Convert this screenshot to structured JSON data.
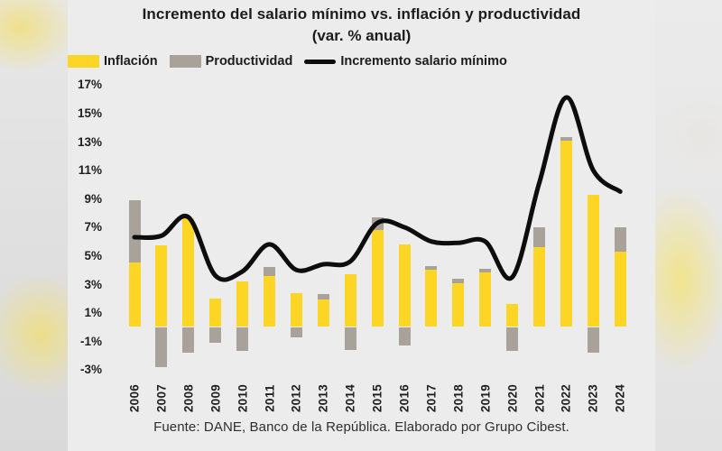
{
  "title": "Incremento del salario mínimo vs. inflación y productividad",
  "subtitle": "(var. % anual)",
  "footer": "Fuente: DANE, Banco de la República. Elaborado por Grupo Cibest.",
  "colors": {
    "inflation": "#FDD524",
    "productivity": "#A8A29B",
    "line": "#0D0D0D",
    "panel_background": "#ECECEC",
    "text": "#1C1C1C"
  },
  "legend": {
    "items": [
      {
        "label": "Inflación",
        "type": "bar",
        "color": "#FDD524"
      },
      {
        "label": "Productividad",
        "type": "bar",
        "color": "#A8A29B"
      },
      {
        "label": "Incremento salario mínimo",
        "type": "line",
        "color": "#0D0D0D"
      }
    ]
  },
  "chart_data": {
    "type": "bar",
    "subtype": "stacked bars with overlaid smoothed line",
    "categories": [
      "2006",
      "2007",
      "2008",
      "2009",
      "2010",
      "2011",
      "2012",
      "2013",
      "2014",
      "2015",
      "2016",
      "2017",
      "2018",
      "2019",
      "2020",
      "2021",
      "2022",
      "2023",
      "2024"
    ],
    "series": [
      {
        "name": "Inflación",
        "type": "bar",
        "color": "#FDD524",
        "values": [
          4.5,
          5.7,
          7.6,
          2.0,
          3.2,
          3.6,
          2.4,
          1.9,
          3.7,
          6.8,
          5.8,
          4.0,
          3.1,
          3.8,
          1.6,
          5.6,
          13.1,
          9.3,
          5.3
        ]
      },
      {
        "name": "Productividad",
        "type": "bar",
        "color": "#A8A29B",
        "values": [
          4.4,
          -2.8,
          -1.8,
          -1.1,
          -1.7,
          0.6,
          -0.7,
          0.4,
          -1.6,
          0.9,
          -1.3,
          0.3,
          0.3,
          0.3,
          -1.7,
          1.4,
          0.2,
          -1.8,
          1.7
        ]
      },
      {
        "name": "Incremento salario mínimo",
        "type": "line",
        "color": "#0D0D0D",
        "values": [
          6.3,
          6.4,
          7.7,
          3.6,
          3.9,
          5.8,
          4.0,
          4.4,
          4.6,
          7.3,
          7.0,
          6.0,
          5.9,
          6.0,
          3.5,
          10.1,
          16.1,
          11.0,
          9.5
        ]
      }
    ],
    "stacking_note": "Productividad stacks on top of Inflación when positive and hangs below the zero baseline when negative",
    "y_axis": {
      "min": -3,
      "max": 17,
      "step": 2,
      "tick_values": [
        17,
        15,
        13,
        11,
        9,
        7,
        5,
        3,
        1,
        -1,
        -3
      ],
      "tick_labels": [
        "17%",
        "15%",
        "13%",
        "11%",
        "9%",
        "7%",
        "5%",
        "3%",
        "1%",
        "-1%",
        "-3%"
      ]
    },
    "grid": false,
    "legend_position": "top-left"
  }
}
